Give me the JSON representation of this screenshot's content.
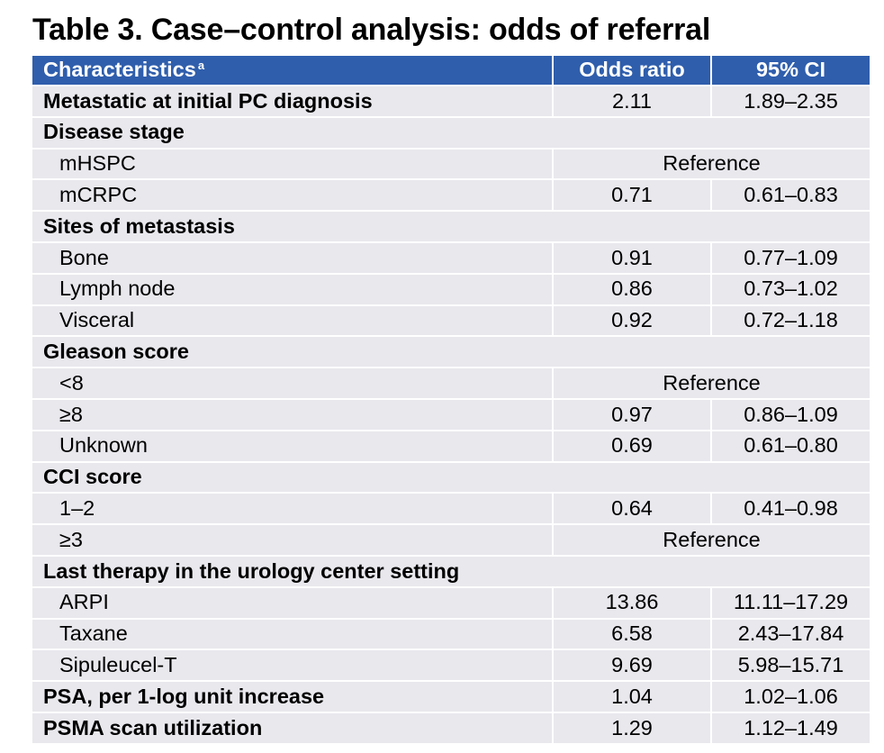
{
  "title": "Table 3. Case–control analysis: odds of referral",
  "header": {
    "characteristics": "Characteristics",
    "footnote_marker": "a",
    "odds_ratio": "Odds ratio",
    "ci": "95% CI"
  },
  "rows": [
    {
      "label": "Metastatic at initial PC diagnosis",
      "kind": "bold",
      "or": "2.11",
      "ci": "1.89–2.35"
    },
    {
      "label": "Disease stage",
      "kind": "group"
    },
    {
      "label": "mHSPC",
      "kind": "sub",
      "reference": "Reference"
    },
    {
      "label": "mCRPC",
      "kind": "sub",
      "or": "0.71",
      "ci": "0.61–0.83"
    },
    {
      "label": "Sites of metastasis",
      "kind": "group"
    },
    {
      "label": "Bone",
      "kind": "sub",
      "or": "0.91",
      "ci": "0.77–1.09"
    },
    {
      "label": "Lymph node",
      "kind": "sub",
      "or": "0.86",
      "ci": "0.73–1.02"
    },
    {
      "label": "Visceral",
      "kind": "sub",
      "or": "0.92",
      "ci": "0.72–1.18"
    },
    {
      "label": "Gleason score",
      "kind": "group"
    },
    {
      "label": "<8",
      "kind": "sub",
      "reference": "Reference"
    },
    {
      "label": "≥8",
      "kind": "sub",
      "or": "0.97",
      "ci": "0.86–1.09"
    },
    {
      "label": "Unknown",
      "kind": "sub",
      "or": "0.69",
      "ci": "0.61–0.80"
    },
    {
      "label": "CCI score",
      "kind": "group"
    },
    {
      "label": "1–2",
      "kind": "sub",
      "or": "0.64",
      "ci": "0.41–0.98"
    },
    {
      "label": "≥3",
      "kind": "sub",
      "reference": "Reference"
    },
    {
      "label": "Last therapy in the urology center setting",
      "kind": "group"
    },
    {
      "label": "ARPI",
      "kind": "sub",
      "or": "13.86",
      "ci": "11.11–17.29"
    },
    {
      "label": "Taxane",
      "kind": "sub",
      "or": "6.58",
      "ci": "2.43–17.84"
    },
    {
      "label": "Sipuleucel-T",
      "kind": "sub",
      "or": "9.69",
      "ci": "5.98–15.71"
    },
    {
      "label": "PSA, per 1-log unit increase",
      "kind": "bold",
      "or": "1.04",
      "ci": "1.02–1.06"
    },
    {
      "label": "PSMA scan utilization",
      "kind": "bold",
      "or": "1.29",
      "ci": "1.12–1.49"
    }
  ]
}
